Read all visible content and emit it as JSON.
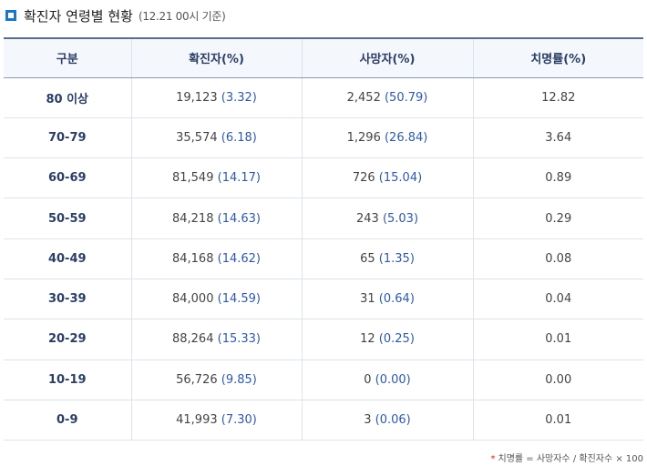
{
  "header": {
    "title": "확진자 연령별 현황",
    "subtitle": "(12.21 00시 기준)"
  },
  "table": {
    "columns": [
      "구분",
      "확진자(%)",
      "사망자(%)",
      "치명률(%)"
    ],
    "rows": [
      {
        "age": "80 이상",
        "cases": "19,123",
        "cases_pct": "(3.32)",
        "deaths": "2,452",
        "deaths_pct": "(50.79)",
        "fatality": "12.82"
      },
      {
        "age": "70-79",
        "cases": "35,574",
        "cases_pct": "(6.18)",
        "deaths": "1,296",
        "deaths_pct": "(26.84)",
        "fatality": "3.64"
      },
      {
        "age": "60-69",
        "cases": "81,549",
        "cases_pct": "(14.17)",
        "deaths": "726",
        "deaths_pct": "(15.04)",
        "fatality": "0.89"
      },
      {
        "age": "50-59",
        "cases": "84,218",
        "cases_pct": "(14.63)",
        "deaths": "243",
        "deaths_pct": "(5.03)",
        "fatality": "0.29"
      },
      {
        "age": "40-49",
        "cases": "84,168",
        "cases_pct": "(14.62)",
        "deaths": "65",
        "deaths_pct": "(1.35)",
        "fatality": "0.08"
      },
      {
        "age": "30-39",
        "cases": "84,000",
        "cases_pct": "(14.59)",
        "deaths": "31",
        "deaths_pct": "(0.64)",
        "fatality": "0.04"
      },
      {
        "age": "20-29",
        "cases": "88,264",
        "cases_pct": "(15.33)",
        "deaths": "12",
        "deaths_pct": "(0.25)",
        "fatality": "0.01"
      },
      {
        "age": "10-19",
        "cases": "56,726",
        "cases_pct": "(9.85)",
        "deaths": "0",
        "deaths_pct": "(0.00)",
        "fatality": "0.00"
      },
      {
        "age": "0-9",
        "cases": "41,993",
        "cases_pct": "(7.30)",
        "deaths": "3",
        "deaths_pct": "(0.06)",
        "fatality": "0.01"
      }
    ]
  },
  "footnote": {
    "marker": "*",
    "text": "치명률 = 사망자수 / 확진자수 × 100"
  },
  "colors": {
    "accent": "#1a78c2",
    "header_text": "#2c3e64",
    "pct_text": "#2f59a8"
  }
}
